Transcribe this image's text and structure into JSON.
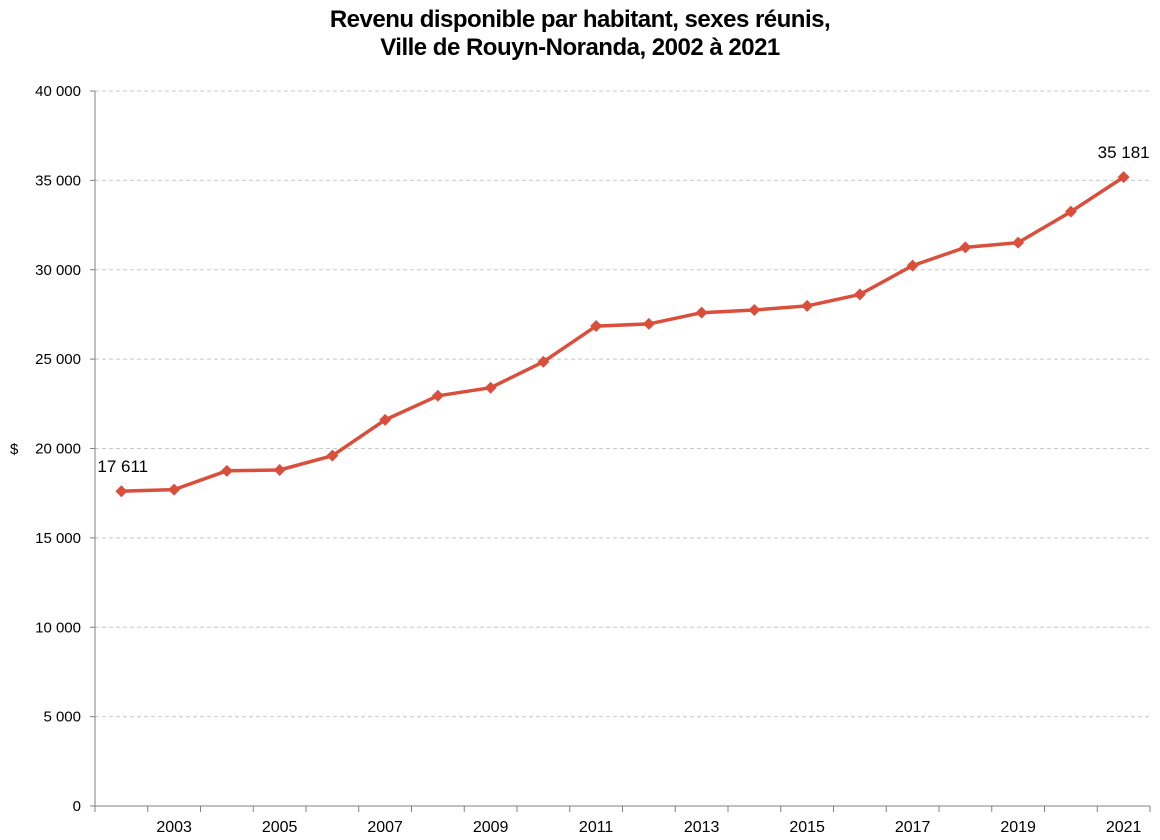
{
  "chart_data": {
    "type": "line",
    "title_line1": "Revenu disponible par habitant, sexes réunis,",
    "title_line2": "Ville de Rouyn-Noranda, 2002 à 2021",
    "ylabel": "$",
    "xlabel": "",
    "ylim": [
      0,
      40000
    ],
    "y_ticks": [
      0,
      5000,
      10000,
      15000,
      20000,
      25000,
      30000,
      35000,
      40000
    ],
    "y_tick_labels": [
      "0",
      "5 000",
      "10 000",
      "15 000",
      "20 000",
      "25 000",
      "30 000",
      "35 000",
      "40 000"
    ],
    "x": [
      2002,
      2003,
      2004,
      2005,
      2006,
      2007,
      2008,
      2009,
      2010,
      2011,
      2012,
      2013,
      2014,
      2015,
      2016,
      2017,
      2018,
      2019,
      2020,
      2021
    ],
    "x_tick_labels": [
      "2003",
      "2005",
      "2007",
      "2009",
      "2011",
      "2013",
      "2015",
      "2017",
      "2019",
      "2021"
    ],
    "series": [
      {
        "values": [
          17611,
          17700,
          18750,
          18800,
          19600,
          21600,
          22950,
          23400,
          24850,
          26850,
          26970,
          27600,
          27750,
          27980,
          28620,
          30230,
          31250,
          31520,
          33250,
          35181
        ],
        "color": "#d94f3b",
        "marker": "diamond"
      }
    ],
    "data_labels": [
      {
        "index": 0,
        "text": "17 611"
      },
      {
        "index": 19,
        "text": "35 181"
      }
    ],
    "grid": "horizontal dashed"
  }
}
